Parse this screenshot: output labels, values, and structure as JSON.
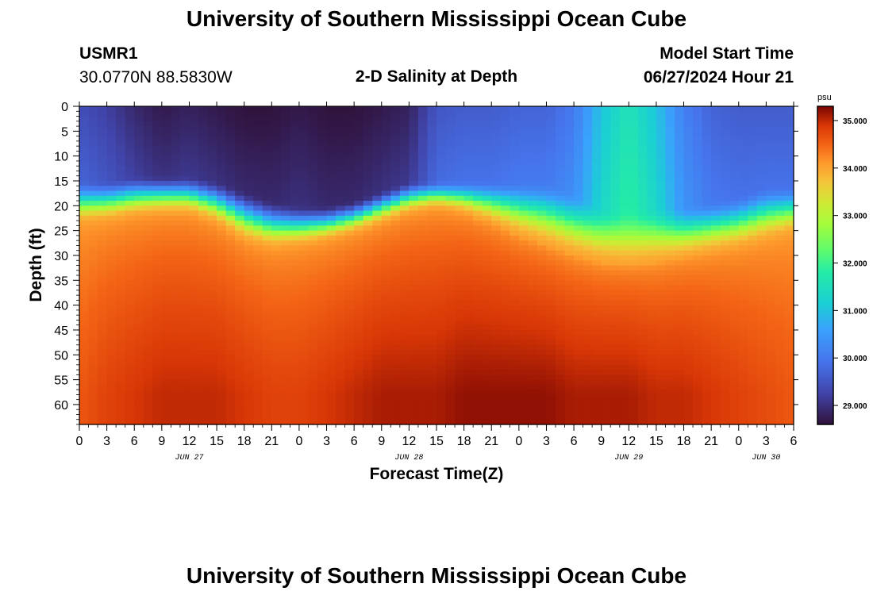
{
  "page": {
    "title_top": "University of Southern Mississippi Ocean Cube",
    "title_bottom": "University of Southern Mississippi Ocean Cube",
    "station_id": "USMR1",
    "station_coords": "30.0770N  88.5830W",
    "plot_title": "2-D Salinity at Depth",
    "model_start_label": "Model Start Time",
    "model_start_value": "06/27/2024 Hour 21"
  },
  "chart_data": {
    "type": "heatmap",
    "title": "2-D Salinity at Depth",
    "xlabel": "Forecast Time(Z)",
    "ylabel": "Depth (ft)",
    "x_tick_labels": [
      "0",
      "3",
      "6",
      "9",
      "12",
      "15",
      "18",
      "21",
      "0",
      "3",
      "6",
      "9",
      "12",
      "15",
      "18",
      "21",
      "0",
      "3",
      "6",
      "9",
      "12",
      "15",
      "18",
      "21",
      "0",
      "3",
      "6"
    ],
    "x_range_hours": [
      0,
      78
    ],
    "date_labels": [
      {
        "text": "JUN 27",
        "hour": 12
      },
      {
        "text": "JUN 28",
        "hour": 36
      },
      {
        "text": "JUN 29",
        "hour": 60
      },
      {
        "text": "JUN 30",
        "hour": 75
      }
    ],
    "y_tick_labels": [
      "0",
      "5",
      "10",
      "15",
      "20",
      "25",
      "30",
      "35",
      "40",
      "45",
      "50",
      "55",
      "60"
    ],
    "ylim": [
      0,
      64
    ],
    "colorbar": {
      "unit": "psu",
      "range": [
        28.6,
        35.3
      ],
      "tick_values": [
        29.0,
        30.0,
        31.0,
        32.0,
        33.0,
        34.0,
        35.0
      ],
      "tick_labels": [
        "29.000",
        "30.000",
        "31.000",
        "32.000",
        "33.000",
        "34.000",
        "35.000"
      ]
    },
    "profile_hours": [
      0,
      3,
      6,
      9,
      12,
      15,
      18,
      21,
      24,
      27,
      30,
      33,
      36,
      39,
      42,
      45,
      48,
      51,
      54,
      57,
      60,
      63,
      66,
      69,
      72,
      75,
      78
    ],
    "surface_salinity": [
      29.4,
      29.2,
      28.9,
      28.7,
      28.8,
      28.7,
      28.6,
      28.6,
      28.7,
      28.6,
      28.6,
      28.7,
      28.8,
      29.5,
      29.6,
      29.6,
      29.7,
      29.7,
      30.0,
      31.0,
      31.6,
      31.0,
      30.1,
      29.7,
      29.6,
      29.6,
      29.6
    ],
    "surface_layer_depth_ft": [
      15,
      15,
      14,
      14,
      14,
      15,
      17,
      19,
      20,
      20,
      19,
      17,
      15,
      15,
      15,
      15,
      15,
      15,
      17,
      20,
      21,
      20,
      20,
      19,
      18,
      16,
      16
    ],
    "halocline_depth_ft": [
      23.5,
      23.0,
      22.0,
      21.5,
      21.5,
      23.5,
      27.0,
      28.5,
      28.0,
      27.0,
      25.5,
      23.5,
      21.5,
      20.5,
      21.5,
      23.5,
      26.0,
      28.0,
      30.0,
      31.5,
      32.0,
      31.5,
      30.5,
      29.5,
      28.5,
      27.0,
      25.5
    ],
    "bottom_salinity": [
      34.6,
      34.8,
      34.9,
      35.0,
      35.0,
      35.0,
      34.9,
      34.8,
      34.8,
      34.9,
      35.0,
      35.1,
      35.1,
      35.1,
      35.2,
      35.2,
      35.2,
      35.2,
      35.1,
      35.1,
      35.1,
      35.0,
      35.0,
      34.9,
      34.8,
      34.7,
      34.6
    ]
  }
}
